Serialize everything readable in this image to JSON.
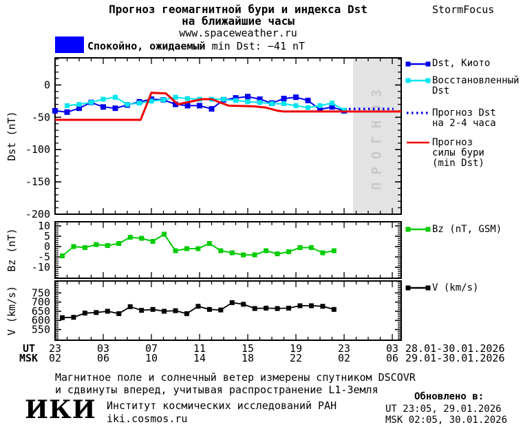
{
  "header": {
    "title_line1": "Прогноз геомагнитной бури и индекса Dst",
    "title_line2": "на ближайшие часы",
    "url": "www.spaceweather.ru",
    "brand": "StormFocus"
  },
  "banner": {
    "box_color": "#0000ff",
    "status": "Спокойно, ожидаемый",
    "value": "min Dst: −41 nT"
  },
  "forecast_region_label": "ПРОГНОЗ",
  "colors": {
    "forecast_region": "#e3e3e3",
    "forecast_label": "#c8c8c8"
  },
  "legend_main": {
    "items": [
      {
        "lines": [
          "Dst, Киото"
        ]
      },
      {
        "lines": [
          "Восстановленный",
          "Dst"
        ]
      },
      {
        "lines": [
          "Прогноз Dst",
          "на 2-4 часа"
        ]
      },
      {
        "lines": [
          "Прогноз",
          "силы бури",
          "(min Dst)"
        ]
      }
    ]
  },
  "legend_bz": "Bz (nT, GSM)",
  "legend_v": "V (km/s)",
  "x_axis": {
    "t_min": 0,
    "t_max": 28.74,
    "major_step": 4,
    "minor_step": 1,
    "forecast_start_t": 24.74,
    "ut_row_label": "UT",
    "msk_row_label": "MSK",
    "ut_labels": [
      "23",
      "03",
      "07",
      "11",
      "15",
      "19",
      "23",
      "03"
    ],
    "msk_labels": [
      "02",
      "06",
      "10",
      "14",
      "18",
      "22",
      "02",
      "06"
    ],
    "ut_date_range": "28.01-30.01.2026",
    "msk_date_range": "29.01-30.01.2026"
  },
  "chart_data": [
    {
      "type": "line",
      "ylabel": "Dst (nT)",
      "ylim": [
        -200,
        42
      ],
      "y_minor_step": 10,
      "y_major_ticks": [
        {
          "v": 0,
          "label": "0"
        },
        {
          "v": -50,
          "label": "-50"
        },
        {
          "v": -100,
          "label": "-100"
        },
        {
          "v": -150,
          "label": "-150"
        },
        {
          "v": -200,
          "label": "-200"
        }
      ],
      "series": [
        {
          "id": "dst-kyoto",
          "name": "Dst, Киото",
          "color": "#0000ee",
          "width": 2,
          "marker": 8,
          "t0": 0,
          "dt": 1,
          "values": [
            -40,
            -42,
            -36,
            -27,
            -34,
            -36,
            -31,
            -26,
            -22,
            -23,
            -30,
            -32,
            -32,
            -37,
            -23,
            -20,
            -18,
            -22,
            -28,
            -21,
            -19,
            -24,
            -38,
            -34,
            -40
          ]
        },
        {
          "id": "dst-restored",
          "name": "Восстановленный Dst",
          "color": "#00e5ee",
          "width": 2,
          "marker": 7,
          "t0": 1,
          "dt": 1,
          "values": [
            -32,
            -30,
            -27,
            -22,
            -19,
            -30,
            -28,
            -25,
            -23,
            -19,
            -21,
            -22,
            -22,
            -22,
            -24,
            -26,
            -27,
            -29,
            -29,
            -32,
            -35,
            -32,
            -28,
            -39
          ]
        },
        {
          "id": "dst-forecast-dotted",
          "name": "Прогноз Dst на 2-4 часа",
          "color": "#0000ee",
          "width": 3.5,
          "dash": "2.5 4.5",
          "t": [
            24.4,
            28.1
          ],
          "v": [
            -37,
            -37
          ]
        },
        {
          "id": "storm-forecast",
          "name": "Прогноз силы бури (min Dst)",
          "color": "#ee0000",
          "width": 3,
          "t": [
            0,
            7.1,
            8.0,
            9.2,
            10.2,
            12.2,
            13.0,
            14.4,
            16.5,
            17.5,
            18.5,
            19.0,
            28.74
          ],
          "v": [
            -54,
            -54,
            -12,
            -13,
            -30,
            -22,
            -22,
            -32,
            -33,
            -35,
            -40,
            -41,
            -41
          ]
        }
      ]
    },
    {
      "type": "line",
      "ylabel": "Bz (nT)",
      "ylim": [
        -15.3,
        12
      ],
      "y_minor_step": 1,
      "y_major_ticks": [
        {
          "v": 10,
          "label": "10"
        },
        {
          "v": 5,
          "label": "5"
        },
        {
          "v": 0,
          "label": "0"
        },
        {
          "v": -5,
          "label": "-5"
        },
        {
          "v": -10,
          "label": "-10"
        }
      ],
      "series": [
        {
          "id": "bz",
          "name": "Bz (nT, GSM)",
          "color": "#00cc00",
          "width": 2,
          "marker": 7,
          "t0": 0.6,
          "dt": 0.94,
          "values": [
            -4.5,
            0,
            -0.5,
            1,
            0.5,
            1.5,
            4.5,
            4,
            2.5,
            6,
            -2,
            -1,
            -1,
            1.5,
            -2,
            -3,
            -4,
            -4,
            -2,
            -3.5,
            -2.5,
            -0.5,
            -0.5,
            -3,
            -2
          ]
        }
      ]
    },
    {
      "type": "line",
      "ylabel": "V (km/s)",
      "ylim": [
        492,
        815
      ],
      "y_minor_step": 10,
      "y_major_ticks": [
        {
          "v": 750,
          "label": "750"
        },
        {
          "v": 700,
          "label": "700"
        },
        {
          "v": 650,
          "label": "650"
        },
        {
          "v": 600,
          "label": "600"
        },
        {
          "v": 550,
          "label": "550"
        }
      ],
      "series": [
        {
          "id": "v-wind",
          "name": "V (km/s)",
          "color": "#000000",
          "width": 1.8,
          "marker": 7,
          "t0": 0.6,
          "dt": 0.94,
          "values": [
            615,
            617,
            640,
            643,
            650,
            637,
            675,
            655,
            660,
            650,
            653,
            637,
            677,
            660,
            657,
            697,
            688,
            665,
            667,
            665,
            667,
            680,
            680,
            677,
            660
          ]
        }
      ]
    }
  ],
  "footer": {
    "note_line1": "Магнитное поле и солнечный ветер измерены спутником DSCOVR",
    "note_line2": "и сдвинуты вперед, учитывая распространение L1-Земля",
    "logo_text": "ИКИ",
    "institute": "Институт космических исследований РАН",
    "institute_url": "iki.cosmos.ru",
    "updated_label": "Обновлено в:",
    "updated_ut": "UT  23:05, 29.01.2026",
    "updated_msk": "MSK 02:05, 30.01.2026"
  }
}
